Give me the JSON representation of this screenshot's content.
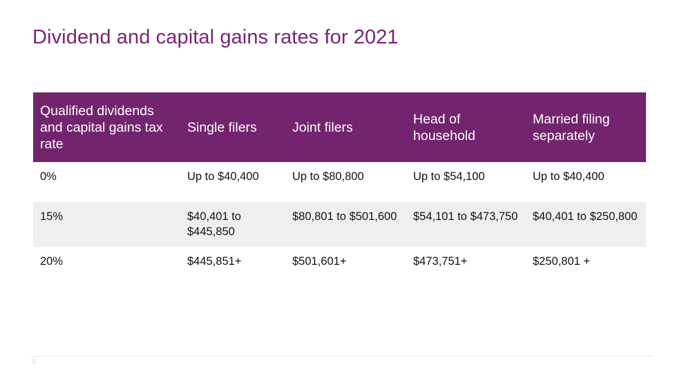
{
  "slide": {
    "title": "Dividend and capital gains rates for 2021",
    "page_number": "5"
  },
  "colors": {
    "title": "#7a2474",
    "header_bg": "#73246e",
    "header_text": "#ffffff",
    "band_bg": "#efefef"
  },
  "table": {
    "headers": [
      "Qualified dividends and capital gains tax rate",
      "Single filers",
      "Joint filers",
      "Head of household",
      "Married filing separately"
    ],
    "rows": [
      [
        "0%",
        "Up to $40,400",
        "Up to $80,800",
        "Up to $54,100",
        "Up to $40,400"
      ],
      [
        "15%",
        "$40,401 to $445,850",
        "$80,801 to $501,600",
        "$54,101 to $473,750",
        "$40,401 to $250,800"
      ],
      [
        "20%",
        "$445,851+",
        "$501,601+",
        "$473,751+",
        "$250,801 +"
      ]
    ]
  }
}
